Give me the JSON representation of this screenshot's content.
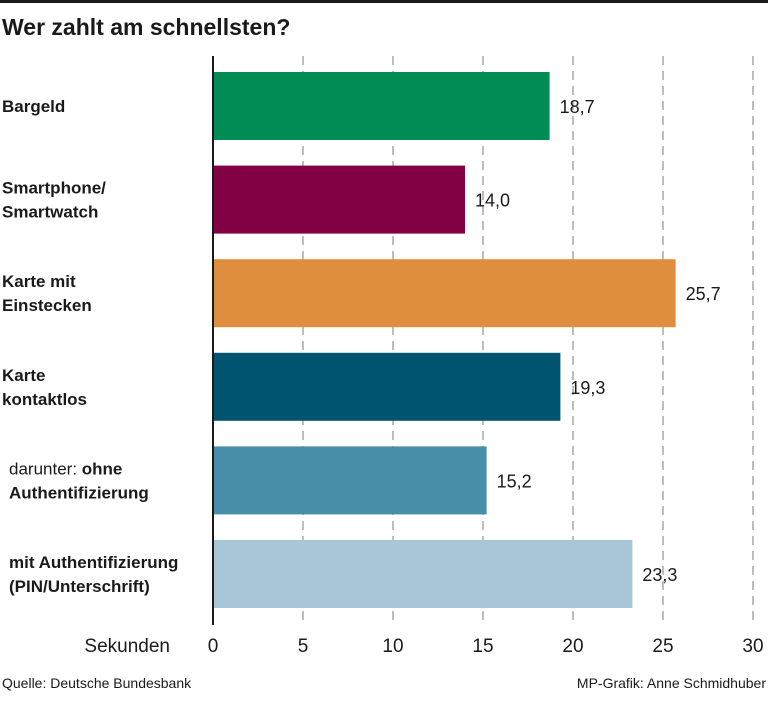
{
  "chart_data": {
    "type": "bar",
    "orientation": "horizontal",
    "title": "Wer zahlt am schnellsten?",
    "xlabel": "Sekunden",
    "ylabel": "",
    "xlim": [
      0,
      30
    ],
    "ticks": [
      0,
      5,
      10,
      15,
      20,
      25,
      30
    ],
    "grid": "vertical-dashed",
    "categories": [
      {
        "lines": [
          {
            "segments": [
              {
                "text": "Bargeld",
                "bold": true
              }
            ]
          }
        ],
        "value": 18.7,
        "label": "18,7",
        "color": "#008c54"
      },
      {
        "lines": [
          {
            "segments": [
              {
                "text": "Smartphone/",
                "bold": true
              }
            ]
          },
          {
            "segments": [
              {
                "text": "Smartwatch",
                "bold": true
              }
            ]
          }
        ],
        "value": 14.0,
        "label": "14,0",
        "color": "#820044"
      },
      {
        "lines": [
          {
            "segments": [
              {
                "text": "Karte mit",
                "bold": true
              }
            ]
          },
          {
            "segments": [
              {
                "text": "Einstecken",
                "bold": true
              }
            ]
          }
        ],
        "value": 25.7,
        "label": "25,7",
        "color": "#df8d3e"
      },
      {
        "lines": [
          {
            "segments": [
              {
                "text": "Karte",
                "bold": true
              }
            ]
          },
          {
            "segments": [
              {
                "text": "kontaktlos",
                "bold": true
              }
            ]
          }
        ],
        "value": 19.3,
        "label": "19,3",
        "color": "#005470"
      },
      {
        "lines": [
          {
            "segments": [
              {
                "text": "darunter: ",
                "bold": false
              },
              {
                "text": "ohne",
                "bold": true
              }
            ]
          },
          {
            "segments": [
              {
                "text": "Authentifizierung",
                "bold": true
              }
            ]
          }
        ],
        "value": 15.2,
        "label": "15,2",
        "color": "#488ea8",
        "indent": true
      },
      {
        "lines": [
          {
            "segments": [
              {
                "text": "mit Authentifizierung",
                "bold": true
              }
            ]
          },
          {
            "segments": [
              {
                "text": "(PIN/Unterschrift)",
                "bold": true
              }
            ]
          }
        ],
        "value": 23.3,
        "label": "23,3",
        "color": "#a8c6d7",
        "indent": true
      }
    ]
  },
  "footer": {
    "source": "Quelle: Deutsche Bundesbank",
    "credit": "MP-Grafik: Anne Schmidhuber"
  }
}
